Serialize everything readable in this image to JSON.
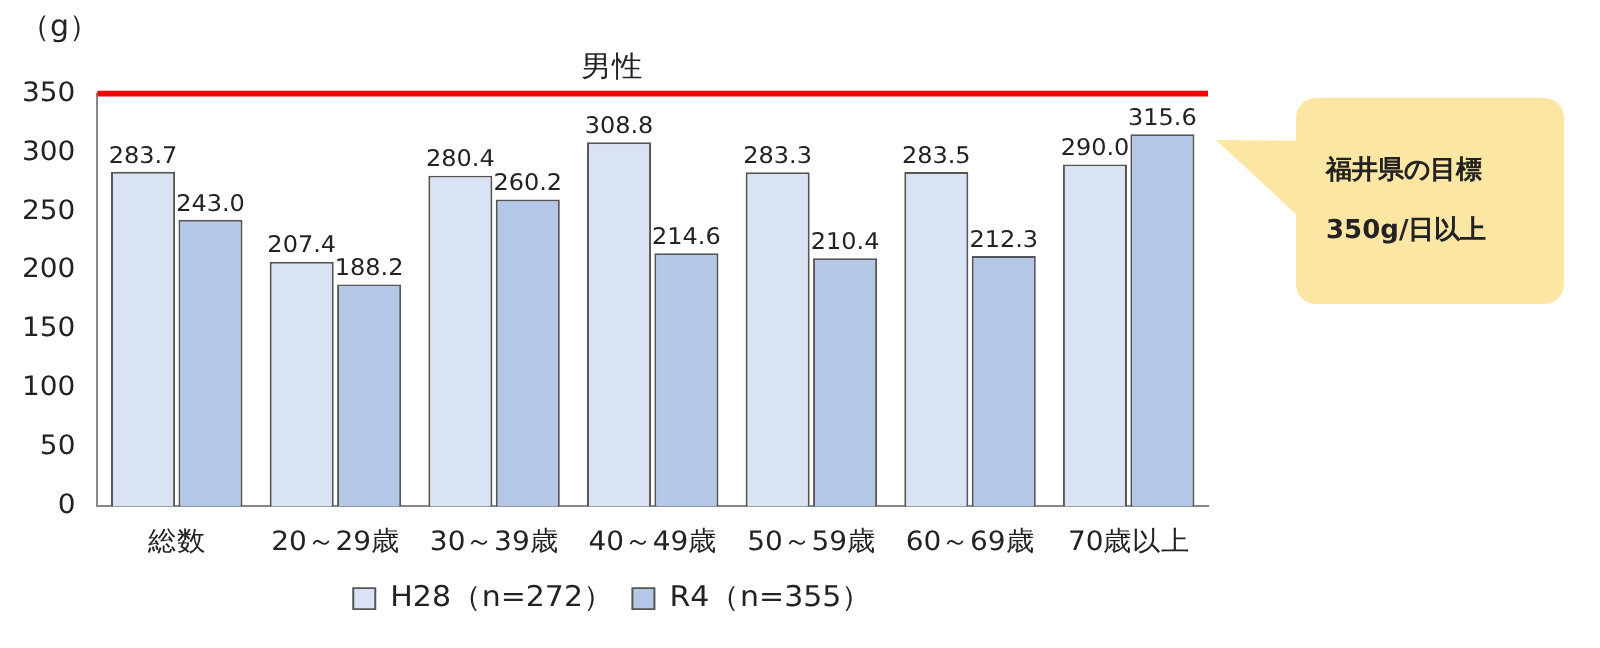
{
  "chart_data": {
    "type": "bar",
    "title": "男性",
    "ylabel": "（g）",
    "categories": [
      "総数",
      "20～29歳",
      "30～39歳",
      "40～49歳",
      "50～59歳",
      "60～69歳",
      "70歳以上"
    ],
    "series": [
      {
        "name": "H28（n=272）",
        "color": "#dae3f3",
        "values": [
          283.7,
          207.4,
          280.4,
          308.8,
          283.3,
          283.5,
          290.0
        ],
        "value_labels": [
          "283.7",
          "207.4",
          "280.4",
          "308.8",
          "283.3",
          "283.5",
          "290.0"
        ]
      },
      {
        "name": "R4（n=355）",
        "color": "#b4c7e7",
        "values": [
          243.0,
          188.2,
          260.2,
          214.6,
          210.4,
          212.3,
          315.6
        ],
        "value_labels": [
          "243.0",
          "188.2",
          "260.2",
          "214.6",
          "210.4",
          "212.3",
          "315.6"
        ]
      }
    ],
    "ylim": [
      0,
      350
    ],
    "yticks": [
      0,
      50,
      100,
      150,
      200,
      250,
      300,
      350
    ],
    "grid": false,
    "legend": "bottom",
    "ref_lines": [
      {
        "axis": "y",
        "value": 350,
        "color": "#ff0000"
      }
    ],
    "annotations": [
      "福井県の目標 350g/日以上"
    ]
  }
}
